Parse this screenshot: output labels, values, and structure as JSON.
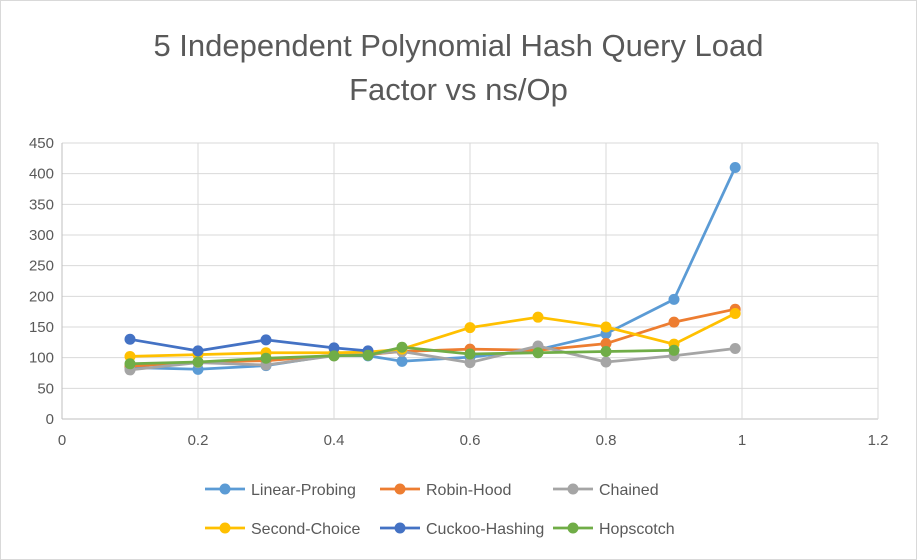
{
  "chart_data": {
    "type": "line",
    "title_lines": [
      "5 Independent Polynomial Hash Query Load",
      "Factor vs ns/Op"
    ],
    "xlabel": "",
    "ylabel": "",
    "xlim": [
      0,
      1.2
    ],
    "ylim": [
      0,
      450
    ],
    "x_ticks": [
      "0",
      "0.2",
      "0.4",
      "0.6",
      "0.8",
      "1",
      "1.2"
    ],
    "y_ticks": [
      "0",
      "50",
      "100",
      "150",
      "200",
      "250",
      "300",
      "350",
      "400",
      "450"
    ],
    "grid": true,
    "legend_position": "bottom",
    "series": [
      {
        "name": "Linear-Probing",
        "color": "#5b9bd5",
        "x": [
          0.1,
          0.2,
          0.3,
          0.4,
          0.45,
          0.5,
          0.6,
          0.7,
          0.8,
          0.9,
          0.99
        ],
        "y": [
          84,
          81,
          87,
          104,
          103,
          94,
          101,
          113,
          139,
          195,
          410
        ]
      },
      {
        "name": "Robin-Hood",
        "color": "#ed7d31",
        "x": [
          0.1,
          0.2,
          0.3,
          0.4,
          0.45,
          0.5,
          0.6,
          0.7,
          0.8,
          0.9,
          0.99
        ],
        "y": [
          86,
          93,
          95,
          104,
          105,
          110,
          114,
          112,
          123,
          158,
          179
        ]
      },
      {
        "name": "Chained",
        "color": "#a5a5a5",
        "x": [
          0.1,
          0.2,
          0.3,
          0.4,
          0.45,
          0.5,
          0.6,
          0.7,
          0.8,
          0.9,
          0.99
        ],
        "y": [
          80,
          92,
          88,
          103,
          106,
          110,
          92,
          119,
          93,
          103,
          115
        ]
      },
      {
        "name": "Second-Choice",
        "color": "#ffc000",
        "x": [
          0.1,
          0.2,
          0.3,
          0.4,
          0.45,
          0.5,
          0.6,
          0.7,
          0.8,
          0.9,
          0.99
        ],
        "y": [
          102,
          105,
          108,
          108,
          109,
          114,
          149,
          166,
          150,
          122,
          172
        ]
      },
      {
        "name": "Cuckoo-Hashing",
        "color": "#4472c4",
        "x": [
          0.1,
          0.2,
          0.3,
          0.4,
          0.45
        ],
        "y": [
          130,
          111,
          129,
          116,
          111
        ]
      },
      {
        "name": "Hopscotch",
        "color": "#70ad47",
        "x": [
          0.1,
          0.2,
          0.3,
          0.4,
          0.45,
          0.5,
          0.6,
          0.7,
          0.8,
          0.9
        ],
        "y": [
          90,
          93,
          99,
          103,
          104,
          117,
          106,
          108,
          110,
          112
        ]
      }
    ]
  }
}
